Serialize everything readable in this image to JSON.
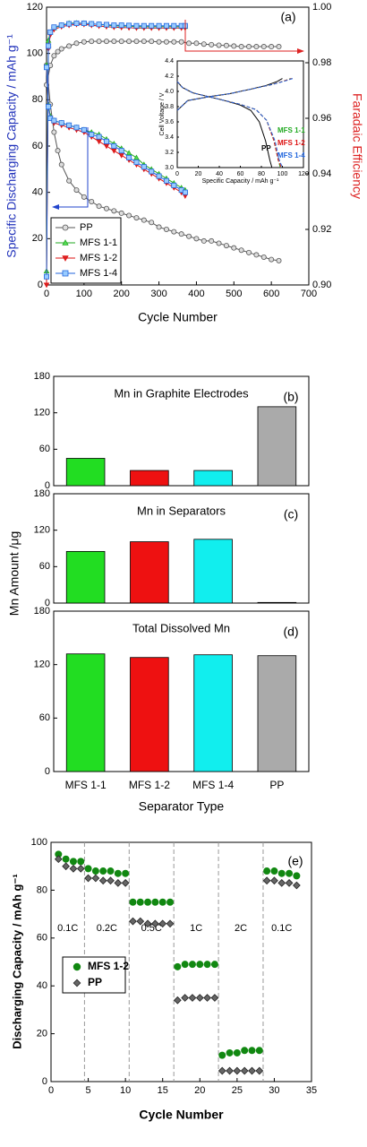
{
  "chart_data": [
    {
      "type": "line",
      "label": "(a)",
      "xlabel": "Cycle Number",
      "ylabel": "Specific Discharging Capacity / mAh g⁻¹",
      "y2label": "Faradaic Efficiency",
      "xlim": [
        0,
        700
      ],
      "xticks": [
        0,
        100,
        200,
        300,
        400,
        500,
        600,
        700
      ],
      "ylim": [
        0,
        120
      ],
      "yticks": [
        0,
        20,
        40,
        60,
        80,
        100,
        120
      ],
      "y2lim": [
        0.9,
        1.0
      ],
      "y2ticks": [
        {
          "value": 0.9,
          "label": "0.90"
        },
        0.92,
        0.94,
        0.96,
        0.98,
        {
          "value": 1.0,
          "label": "1.00"
        }
      ],
      "series": [
        {
          "name": "PP",
          "color": "#555555",
          "marker": "circle",
          "x": [
            0,
            10,
            20,
            30,
            40,
            60,
            80,
            100,
            120,
            140,
            160,
            180,
            200,
            220,
            240,
            260,
            280,
            300,
            320,
            340,
            360,
            380,
            400,
            420,
            440,
            460,
            480,
            500,
            520,
            540,
            560,
            580,
            600,
            620
          ],
          "values": [
            95,
            78,
            66,
            58,
            52,
            45,
            41,
            38,
            36,
            34,
            33,
            32,
            31,
            30,
            29,
            28,
            27,
            25,
            24,
            23,
            22,
            21,
            20,
            19,
            19,
            18,
            17,
            16,
            15,
            14,
            13,
            12,
            11,
            10.5
          ],
          "efficiency": [
            0.972,
            0.979,
            0.9825,
            0.984,
            0.985,
            0.986,
            0.987,
            0.9875,
            0.9877,
            0.9877,
            0.9877,
            0.9877,
            0.9877,
            0.9877,
            0.9877,
            0.9877,
            0.9877,
            0.9875,
            0.9875,
            0.9875,
            0.9875,
            0.987,
            0.987,
            0.9867,
            0.9865,
            0.9863,
            0.9862,
            0.986,
            0.9858,
            0.9858,
            0.9858,
            0.9858,
            0.9858,
            0.9858
          ]
        },
        {
          "name": "MFS 1-1",
          "color": "#22aa22",
          "marker": "tri-up",
          "x": [
            0,
            5,
            10,
            20,
            40,
            60,
            80,
            100,
            120,
            140,
            160,
            180,
            200,
            220,
            240,
            260,
            280,
            300,
            320,
            340,
            360,
            370
          ],
          "values": [
            95,
            78,
            73,
            71,
            70,
            69,
            68,
            67,
            66,
            65,
            63,
            61,
            59,
            57,
            55,
            52,
            50,
            48,
            46,
            44,
            42,
            41
          ],
          "efficiency": [
            0.905,
            0.988,
            0.991,
            0.9925,
            0.9935,
            0.9942,
            0.9943,
            0.9942,
            0.994,
            0.9938,
            0.9935,
            0.9933,
            0.9932,
            0.9932,
            0.993,
            0.993,
            0.993,
            0.993,
            0.993,
            0.993,
            0.993,
            0.993
          ]
        },
        {
          "name": "MFS 1-2",
          "color": "#dd1111",
          "marker": "tri-down",
          "x": [
            0,
            5,
            10,
            20,
            40,
            60,
            80,
            100,
            120,
            140,
            160,
            180,
            200,
            220,
            240,
            260,
            280,
            300,
            320,
            340,
            360,
            370
          ],
          "values": [
            94,
            77,
            72,
            70,
            69,
            68,
            67,
            66,
            64,
            62,
            60,
            58,
            56,
            54,
            52,
            50,
            48,
            46,
            44,
            42,
            40,
            38.5
          ],
          "efficiency": [
            0.9,
            0.985,
            0.99,
            0.992,
            0.993,
            0.9935,
            0.9938,
            0.9938,
            0.9935,
            0.9932,
            0.993,
            0.9928,
            0.9927,
            0.9926,
            0.9925,
            0.9925,
            0.9925,
            0.9925,
            0.9925,
            0.9925,
            0.9925,
            0.9925
          ]
        },
        {
          "name": "MFS 1-4",
          "color": "#2266dd",
          "marker": "square",
          "x": [
            0,
            5,
            10,
            20,
            40,
            60,
            80,
            100,
            120,
            140,
            160,
            180,
            200,
            220,
            240,
            260,
            280,
            300,
            320,
            340,
            360,
            370
          ],
          "values": [
            94,
            77,
            72,
            71,
            70,
            69,
            68,
            67,
            65,
            64,
            62,
            60,
            58,
            55,
            53,
            51,
            49,
            47,
            45,
            43,
            41,
            40
          ],
          "efficiency": [
            0.903,
            0.986,
            0.991,
            0.9928,
            0.9935,
            0.994,
            0.9942,
            0.9942,
            0.994,
            0.9938,
            0.9937,
            0.9935,
            0.9935,
            0.9934,
            0.9933,
            0.9933,
            0.9933,
            0.9933,
            0.9933,
            0.9933,
            0.9933,
            0.9933
          ]
        }
      ],
      "inset": {
        "type": "line",
        "xlabel": "Specific Capacity / mAh g⁻¹",
        "ylabel": "Cell Voltage / V",
        "xlim": [
          0,
          120
        ],
        "xticks": [
          0,
          20,
          40,
          60,
          80,
          100,
          120
        ],
        "ylim": [
          3.0,
          4.4
        ],
        "yticks": [
          {
            "value": 3.0,
            "label": "3.0"
          },
          3.2,
          3.4,
          3.6,
          3.8,
          {
            "value": 4.0,
            "label": "4.0"
          },
          4.2,
          4.4
        ],
        "series": [
          {
            "name": "PP",
            "color": "#000000",
            "x": [
              0,
              5,
              15,
              30,
              45,
              60,
              70,
              78,
              84,
              88,
              90
            ],
            "values": [
              4.13,
              4.05,
              3.98,
              3.93,
              3.88,
              3.82,
              3.75,
              3.6,
              3.35,
              3.1,
              3.0
            ],
            "charge_x": [
              0,
              10,
              30,
              50,
              70,
              85,
              95,
              100
            ],
            "charge": [
              3.75,
              3.88,
              3.93,
              3.97,
              4.03,
              4.08,
              4.13,
              4.17
            ]
          },
          {
            "name": "MFS 1-1",
            "color": "#22aa22",
            "x": [
              0,
              5,
              15,
              30,
              45,
              60,
              75,
              85,
              92,
              96,
              98
            ],
            "values": [
              4.13,
              4.05,
              3.98,
              3.93,
              3.88,
              3.83,
              3.76,
              3.62,
              3.35,
              3.1,
              3.0
            ],
            "charge_x": [
              0,
              10,
              30,
              50,
              70,
              90,
              100,
              108
            ],
            "charge": [
              3.75,
              3.88,
              3.93,
              3.97,
              4.03,
              4.09,
              4.13,
              4.17
            ]
          },
          {
            "name": "MFS 1-2",
            "color": "#dd1111",
            "x": [
              0,
              5,
              15,
              30,
              45,
              60,
              75,
              85,
              92,
              96,
              99
            ],
            "values": [
              4.13,
              4.05,
              3.98,
              3.93,
              3.88,
              3.83,
              3.76,
              3.62,
              3.35,
              3.1,
              3.0
            ],
            "charge_x": [
              0,
              10,
              30,
              50,
              70,
              90,
              100,
              109
            ],
            "charge": [
              3.75,
              3.88,
              3.93,
              3.97,
              4.03,
              4.09,
              4.13,
              4.17
            ]
          },
          {
            "name": "MFS 1-4",
            "color": "#2266dd",
            "x": [
              0,
              5,
              15,
              30,
              45,
              60,
              75,
              85,
              93,
              97,
              100
            ],
            "values": [
              4.13,
              4.05,
              3.98,
              3.93,
              3.88,
              3.83,
              3.76,
              3.62,
              3.35,
              3.1,
              3.0
            ],
            "charge_x": [
              0,
              10,
              30,
              50,
              70,
              90,
              101,
              110
            ],
            "charge": [
              3.75,
              3.88,
              3.93,
              3.97,
              4.03,
              4.09,
              4.13,
              4.17
            ]
          }
        ]
      }
    },
    {
      "type": "bar",
      "label": "(b)",
      "title": "Mn in Graphite Electrodes",
      "ylim": [
        0,
        180
      ],
      "yticks": [
        0,
        60,
        120,
        180
      ],
      "values": [
        45,
        25,
        25,
        130
      ],
      "colors": [
        "#22dd22",
        "#ee1111",
        "#11eeee",
        "#aaaaaa"
      ]
    },
    {
      "type": "bar",
      "label": "(c)",
      "title": "Mn in Separators",
      "ylabel": "Mn Amount /μg",
      "ylim": [
        0,
        180
      ],
      "yticks": [
        0,
        60,
        120,
        180
      ],
      "values": [
        85,
        101,
        105,
        1
      ],
      "colors": [
        "#22dd22",
        "#ee1111",
        "#11eeee",
        "#aaaaaa"
      ]
    },
    {
      "type": "bar",
      "label": "(d)",
      "title": "Total Dissolved Mn",
      "xlabel": "Separator Type",
      "ylim": [
        0,
        180
      ],
      "yticks": [
        0,
        60,
        120,
        180
      ],
      "categories": [
        "MFS 1-1",
        "MFS 1-2",
        "MFS 1-4",
        "PP"
      ],
      "values": [
        132,
        128,
        131,
        130
      ],
      "colors": [
        "#22dd22",
        "#ee1111",
        "#11eeee",
        "#aaaaaa"
      ]
    },
    {
      "type": "scatter",
      "label": "(e)",
      "xlabel": "Cycle Number",
      "ylabel": "Discharging Capacity / mAh g⁻¹",
      "xlim": [
        0,
        35
      ],
      "xticks": [
        0,
        5,
        10,
        15,
        20,
        25,
        30,
        35
      ],
      "ylim": [
        0,
        100
      ],
      "yticks": [
        0,
        20,
        40,
        60,
        80,
        100
      ],
      "dividers": [
        4.5,
        10.5,
        16.5,
        22.5,
        28.5
      ],
      "rate_labels": [
        "0.1C",
        "0.2C",
        "0.5C",
        "1C",
        "2C",
        "0.1C"
      ],
      "x": [
        1,
        2,
        3,
        4,
        5,
        6,
        7,
        8,
        9,
        10,
        11,
        12,
        13,
        14,
        15,
        16,
        17,
        18,
        19,
        20,
        21,
        22,
        23,
        24,
        25,
        26,
        27,
        28,
        29,
        30,
        31,
        32,
        33
      ],
      "series": [
        {
          "name": "MFS 1-2",
          "color": "#118811",
          "marker": "circle",
          "values": [
            95,
            93,
            92,
            92,
            89,
            88,
            88,
            88,
            87,
            87,
            75,
            75,
            75,
            75,
            75,
            75,
            48,
            49,
            49,
            49,
            49,
            49,
            11,
            12,
            12,
            13,
            13,
            13,
            88,
            88,
            87,
            87,
            86
          ]
        },
        {
          "name": "PP",
          "color": "#222222",
          "marker": "diamond",
          "values": [
            93,
            90,
            89,
            89,
            85,
            85,
            84,
            84,
            83,
            83,
            67,
            67,
            66,
            66,
            66,
            66,
            34,
            35,
            35,
            35,
            35,
            35,
            4.5,
            4.5,
            4.5,
            4.5,
            4.5,
            4.5,
            84,
            84,
            83,
            83,
            82
          ]
        }
      ]
    }
  ]
}
